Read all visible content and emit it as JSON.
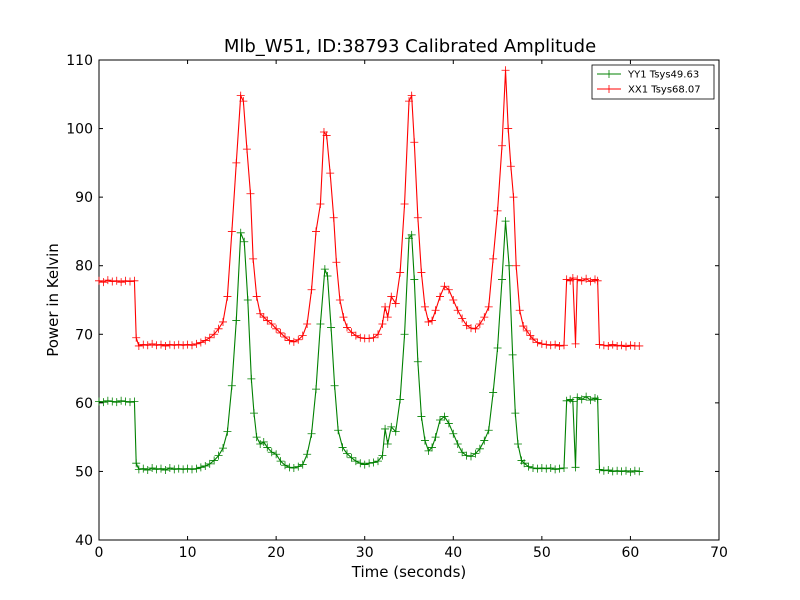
{
  "chart_data": {
    "type": "line",
    "title": "Mlb_W51, ID:38793 Calibrated Amplitude",
    "xlabel": "Time (seconds)",
    "ylabel": "Power in Kelvin",
    "xlim": [
      0,
      70
    ],
    "ylim": [
      40,
      110
    ],
    "xticks": [
      "0",
      "10",
      "20",
      "30",
      "40",
      "50",
      "60",
      "70"
    ],
    "yticks": [
      "40",
      "50",
      "60",
      "70",
      "80",
      "90",
      "100",
      "110"
    ],
    "grid": false,
    "legend_position": "top-right",
    "marker": "plus",
    "series": [
      {
        "name": "YY1 Tsys49.63",
        "color": "#008000",
        "points": [
          [
            0.0,
            60.2
          ],
          [
            0.5,
            60.1
          ],
          [
            1.0,
            60.3
          ],
          [
            1.5,
            60.2
          ],
          [
            2.0,
            60.1
          ],
          [
            2.5,
            60.3
          ],
          [
            3.0,
            60.2
          ],
          [
            3.5,
            60.1
          ],
          [
            4.0,
            60.2
          ],
          [
            4.2,
            51.2
          ],
          [
            4.5,
            50.3
          ],
          [
            5.0,
            50.4
          ],
          [
            5.5,
            50.2
          ],
          [
            6.0,
            50.5
          ],
          [
            6.5,
            50.3
          ],
          [
            7.0,
            50.4
          ],
          [
            7.5,
            50.2
          ],
          [
            8.0,
            50.5
          ],
          [
            8.5,
            50.3
          ],
          [
            9.0,
            50.4
          ],
          [
            9.5,
            50.3
          ],
          [
            10.0,
            50.4
          ],
          [
            10.5,
            50.3
          ],
          [
            11.0,
            50.4
          ],
          [
            11.5,
            50.6
          ],
          [
            12.0,
            50.8
          ],
          [
            12.5,
            51.1
          ],
          [
            13.0,
            51.6
          ],
          [
            13.5,
            52.3
          ],
          [
            14.0,
            53.4
          ],
          [
            14.5,
            55.8
          ],
          [
            15.0,
            62.5
          ],
          [
            15.5,
            72.0
          ],
          [
            16.0,
            84.8
          ],
          [
            16.4,
            83.5
          ],
          [
            16.8,
            75.0
          ],
          [
            17.2,
            63.5
          ],
          [
            17.5,
            58.5
          ],
          [
            17.8,
            55.0
          ],
          [
            18.2,
            54.0
          ],
          [
            18.6,
            54.3
          ],
          [
            19.0,
            53.5
          ],
          [
            19.5,
            52.8
          ],
          [
            20.0,
            52.5
          ],
          [
            20.5,
            51.5
          ],
          [
            21.0,
            50.9
          ],
          [
            21.5,
            50.6
          ],
          [
            22.0,
            50.5
          ],
          [
            22.5,
            50.7
          ],
          [
            23.0,
            51.0
          ],
          [
            23.5,
            52.5
          ],
          [
            24.0,
            55.5
          ],
          [
            24.5,
            62.0
          ],
          [
            25.0,
            71.5
          ],
          [
            25.5,
            79.5
          ],
          [
            25.8,
            78.5
          ],
          [
            26.2,
            71.0
          ],
          [
            26.6,
            62.5
          ],
          [
            27.0,
            56.0
          ],
          [
            27.5,
            53.5
          ],
          [
            28.0,
            52.6
          ],
          [
            28.5,
            52.0
          ],
          [
            29.0,
            51.5
          ],
          [
            29.5,
            51.2
          ],
          [
            30.0,
            51.0
          ],
          [
            30.5,
            51.2
          ],
          [
            31.0,
            51.3
          ],
          [
            31.5,
            51.5
          ],
          [
            32.0,
            52.3
          ],
          [
            32.3,
            56.2
          ],
          [
            32.6,
            54.0
          ],
          [
            33.0,
            56.5
          ],
          [
            33.5,
            55.8
          ],
          [
            34.0,
            60.5
          ],
          [
            34.5,
            70.0
          ],
          [
            35.0,
            84.0
          ],
          [
            35.3,
            84.5
          ],
          [
            35.6,
            78.0
          ],
          [
            36.0,
            66.0
          ],
          [
            36.4,
            58.0
          ],
          [
            36.8,
            54.5
          ],
          [
            37.2,
            53.0
          ],
          [
            37.6,
            53.5
          ],
          [
            38.0,
            55.0
          ],
          [
            38.5,
            57.5
          ],
          [
            39.0,
            58.0
          ],
          [
            39.5,
            57.0
          ],
          [
            40.0,
            55.5
          ],
          [
            40.5,
            54.0
          ],
          [
            41.0,
            52.8
          ],
          [
            41.5,
            52.3
          ],
          [
            42.0,
            52.2
          ],
          [
            42.5,
            52.6
          ],
          [
            43.0,
            53.3
          ],
          [
            43.5,
            54.5
          ],
          [
            44.0,
            56.0
          ],
          [
            44.5,
            61.5
          ],
          [
            45.0,
            68.0
          ],
          [
            45.5,
            78.0
          ],
          [
            45.9,
            86.5
          ],
          [
            46.3,
            80.0
          ],
          [
            46.7,
            67.0
          ],
          [
            47.0,
            58.5
          ],
          [
            47.3,
            54.0
          ],
          [
            47.7,
            51.6
          ],
          [
            48.0,
            51.2
          ],
          [
            48.5,
            50.7
          ],
          [
            49.0,
            50.5
          ],
          [
            49.5,
            50.4
          ],
          [
            50.0,
            50.5
          ],
          [
            50.5,
            50.4
          ],
          [
            51.0,
            50.5
          ],
          [
            51.5,
            50.3
          ],
          [
            52.0,
            50.4
          ],
          [
            52.5,
            50.5
          ],
          [
            52.8,
            60.3
          ],
          [
            53.2,
            60.5
          ],
          [
            53.5,
            60.2
          ],
          [
            53.8,
            50.6
          ],
          [
            54.0,
            60.8
          ],
          [
            54.5,
            60.5
          ],
          [
            55.0,
            60.9
          ],
          [
            55.5,
            60.4
          ],
          [
            56.0,
            60.7
          ],
          [
            56.3,
            60.5
          ],
          [
            56.5,
            50.3
          ],
          [
            57.0,
            50.1
          ],
          [
            57.5,
            50.2
          ],
          [
            58.0,
            50.0
          ],
          [
            58.5,
            50.1
          ],
          [
            59.0,
            50.0
          ],
          [
            59.5,
            50.1
          ],
          [
            60.0,
            49.9
          ],
          [
            60.5,
            50.1
          ],
          [
            61.0,
            50.0
          ]
        ]
      },
      {
        "name": "XX1 Tsys68.07",
        "color": "#ff0000",
        "points": [
          [
            0.0,
            77.8
          ],
          [
            0.5,
            77.6
          ],
          [
            1.0,
            77.9
          ],
          [
            1.5,
            77.7
          ],
          [
            2.0,
            77.8
          ],
          [
            2.5,
            77.6
          ],
          [
            3.0,
            77.8
          ],
          [
            3.5,
            77.7
          ],
          [
            4.0,
            77.8
          ],
          [
            4.2,
            69.5
          ],
          [
            4.5,
            68.3
          ],
          [
            5.0,
            68.5
          ],
          [
            5.5,
            68.4
          ],
          [
            6.0,
            68.6
          ],
          [
            6.5,
            68.4
          ],
          [
            7.0,
            68.5
          ],
          [
            7.5,
            68.3
          ],
          [
            8.0,
            68.5
          ],
          [
            8.5,
            68.4
          ],
          [
            9.0,
            68.5
          ],
          [
            9.5,
            68.4
          ],
          [
            10.0,
            68.5
          ],
          [
            10.5,
            68.4
          ],
          [
            11.0,
            68.6
          ],
          [
            11.5,
            68.8
          ],
          [
            12.0,
            69.1
          ],
          [
            12.5,
            69.5
          ],
          [
            13.0,
            70.0
          ],
          [
            13.5,
            70.8
          ],
          [
            14.0,
            71.8
          ],
          [
            14.5,
            75.5
          ],
          [
            15.0,
            85.0
          ],
          [
            15.5,
            95.0
          ],
          [
            16.0,
            104.8
          ],
          [
            16.3,
            104.0
          ],
          [
            16.7,
            97.0
          ],
          [
            17.1,
            90.5
          ],
          [
            17.4,
            81.0
          ],
          [
            17.8,
            75.5
          ],
          [
            18.2,
            73.0
          ],
          [
            18.6,
            72.5
          ],
          [
            19.0,
            72.0
          ],
          [
            19.5,
            71.5
          ],
          [
            20.0,
            70.8
          ],
          [
            20.5,
            70.2
          ],
          [
            21.0,
            69.6
          ],
          [
            21.5,
            69.1
          ],
          [
            22.0,
            68.9
          ],
          [
            22.5,
            69.2
          ],
          [
            23.0,
            69.8
          ],
          [
            23.5,
            71.5
          ],
          [
            24.0,
            76.5
          ],
          [
            24.5,
            85.0
          ],
          [
            25.0,
            89.0
          ],
          [
            25.4,
            99.5
          ],
          [
            25.7,
            99.0
          ],
          [
            26.1,
            93.5
          ],
          [
            26.5,
            87.0
          ],
          [
            26.8,
            80.5
          ],
          [
            27.2,
            75.0
          ],
          [
            27.6,
            72.5
          ],
          [
            28.0,
            71.0
          ],
          [
            28.5,
            70.3
          ],
          [
            29.0,
            69.8
          ],
          [
            29.5,
            69.5
          ],
          [
            30.0,
            69.4
          ],
          [
            30.5,
            69.4
          ],
          [
            31.0,
            69.5
          ],
          [
            31.5,
            70.0
          ],
          [
            32.0,
            71.5
          ],
          [
            32.3,
            74.0
          ],
          [
            32.6,
            72.5
          ],
          [
            33.0,
            75.5
          ],
          [
            33.5,
            74.5
          ],
          [
            34.0,
            79.0
          ],
          [
            34.5,
            89.0
          ],
          [
            35.0,
            104.0
          ],
          [
            35.3,
            104.8
          ],
          [
            35.6,
            98.0
          ],
          [
            36.0,
            87.0
          ],
          [
            36.4,
            79.0
          ],
          [
            36.8,
            74.0
          ],
          [
            37.2,
            71.8
          ],
          [
            37.6,
            72.0
          ],
          [
            38.0,
            73.5
          ],
          [
            38.5,
            75.5
          ],
          [
            39.0,
            77.0
          ],
          [
            39.5,
            76.5
          ],
          [
            40.0,
            75.0
          ],
          [
            40.5,
            73.5
          ],
          [
            41.0,
            72.3
          ],
          [
            41.5,
            71.3
          ],
          [
            42.0,
            70.9
          ],
          [
            42.5,
            70.8
          ],
          [
            43.0,
            71.5
          ],
          [
            43.5,
            72.5
          ],
          [
            44.0,
            74.0
          ],
          [
            44.5,
            81.0
          ],
          [
            45.0,
            88.0
          ],
          [
            45.5,
            97.5
          ],
          [
            45.9,
            108.5
          ],
          [
            46.2,
            100.0
          ],
          [
            46.5,
            94.5
          ],
          [
            46.8,
            90.0
          ],
          [
            47.1,
            80.0
          ],
          [
            47.5,
            73.5
          ],
          [
            47.9,
            71.2
          ],
          [
            48.3,
            70.5
          ],
          [
            48.7,
            69.8
          ],
          [
            49.0,
            69.3
          ],
          [
            49.5,
            68.8
          ],
          [
            50.0,
            68.6
          ],
          [
            50.5,
            68.5
          ],
          [
            51.0,
            68.4
          ],
          [
            51.5,
            68.5
          ],
          [
            52.0,
            68.3
          ],
          [
            52.5,
            68.4
          ],
          [
            52.8,
            78.0
          ],
          [
            53.2,
            77.8
          ],
          [
            53.5,
            78.2
          ],
          [
            53.8,
            68.6
          ],
          [
            54.0,
            78.0
          ],
          [
            54.5,
            77.8
          ],
          [
            55.0,
            78.1
          ],
          [
            55.5,
            77.7
          ],
          [
            56.0,
            78.0
          ],
          [
            56.3,
            77.8
          ],
          [
            56.5,
            68.5
          ],
          [
            57.0,
            68.4
          ],
          [
            57.5,
            68.3
          ],
          [
            58.0,
            68.5
          ],
          [
            58.5,
            68.3
          ],
          [
            59.0,
            68.4
          ],
          [
            59.5,
            68.2
          ],
          [
            60.0,
            68.4
          ],
          [
            60.5,
            68.3
          ],
          [
            61.0,
            68.3
          ]
        ]
      }
    ]
  }
}
